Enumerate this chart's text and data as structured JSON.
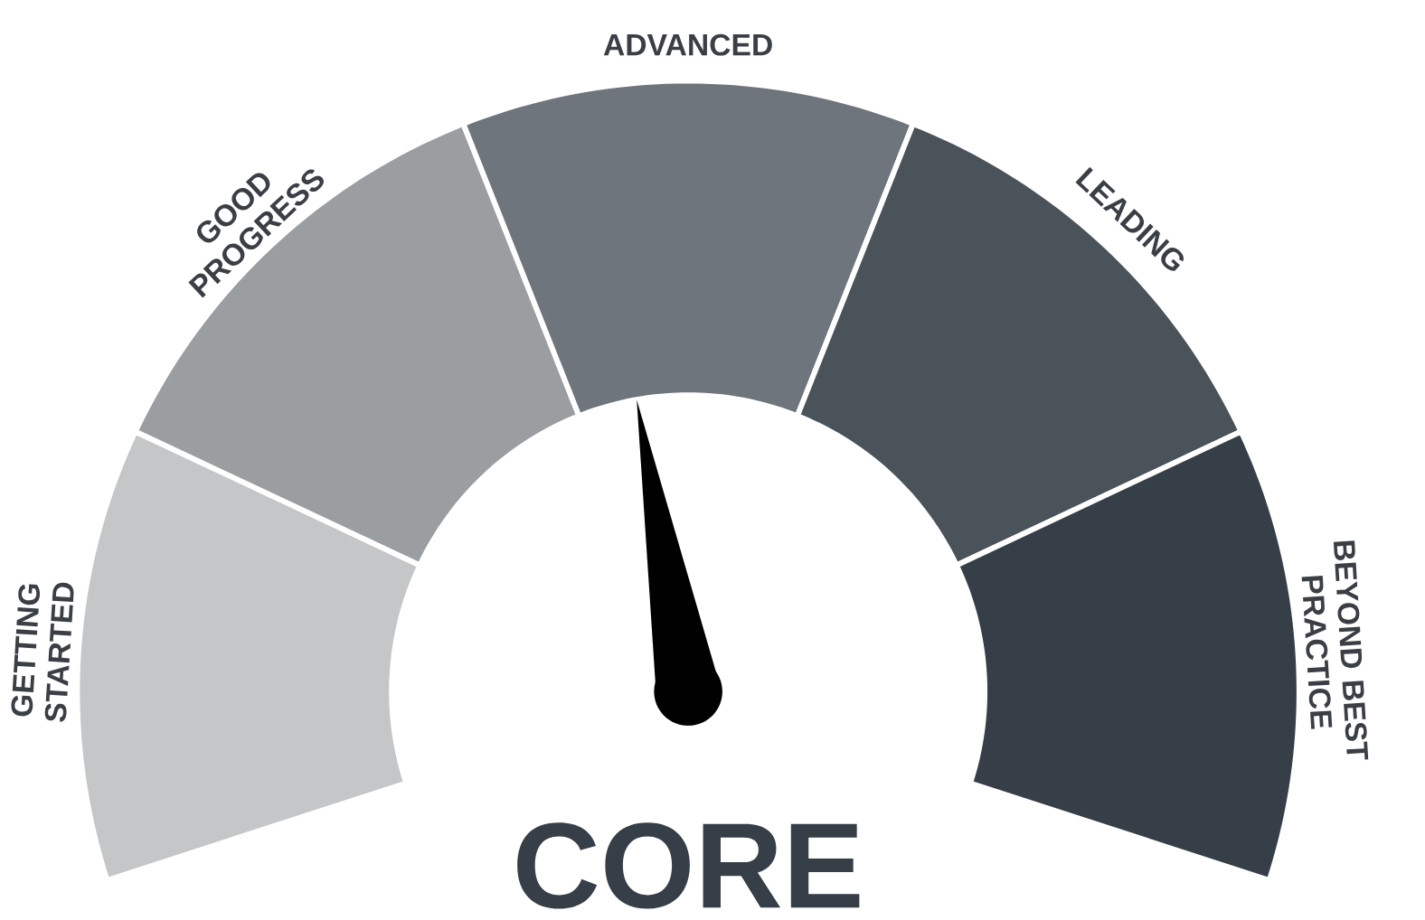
{
  "chart_data": {
    "type": "donut",
    "categories": [
      "GETTING STARTED",
      "GOOD PROGRESS",
      "ADVANCED",
      "LEADING",
      "BEYOND BEST PRACTICE"
    ],
    "values": [
      20,
      20,
      20,
      20,
      20
    ],
    "colors": [
      "#c4c6c8",
      "#9b9ea1",
      "#6f757c",
      "#4a525a",
      "#363e47"
    ],
    "needle": "ADVANCED",
    "annotations": [
      "CORE"
    ]
  }
}
